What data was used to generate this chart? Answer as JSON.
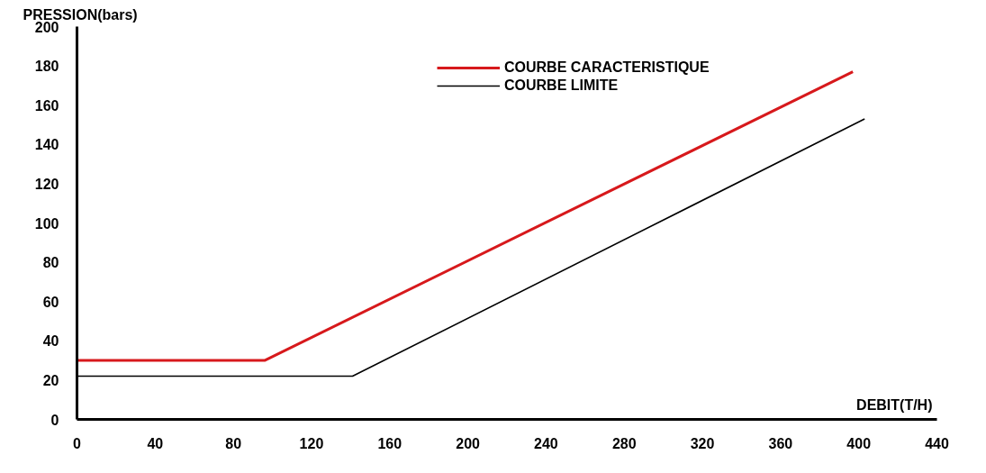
{
  "chart_data": {
    "type": "line",
    "xlabel": "DEBIT(T/H)",
    "ylabel": "PRESSION(bars)",
    "xlim": [
      0,
      440
    ],
    "xticks": [
      0,
      40,
      80,
      120,
      160,
      200,
      240,
      280,
      320,
      360,
      400,
      440
    ],
    "ylim": [
      0,
      200
    ],
    "yticks": [
      0,
      20,
      40,
      60,
      80,
      100,
      120,
      140,
      160,
      180,
      200
    ],
    "grid": false,
    "legend": "top right",
    "line_style": "solid",
    "series": [
      {
        "name": "COURBE CARACTERISTIQUE",
        "color": "#d7191c",
        "x": [
          0,
          96,
          397
        ],
        "values": [
          30,
          30,
          177
        ]
      },
      {
        "name": "COURBE LIMITE",
        "color": "#000000",
        "x": [
          0,
          141,
          403
        ],
        "values": [
          22,
          22,
          153
        ]
      }
    ]
  }
}
